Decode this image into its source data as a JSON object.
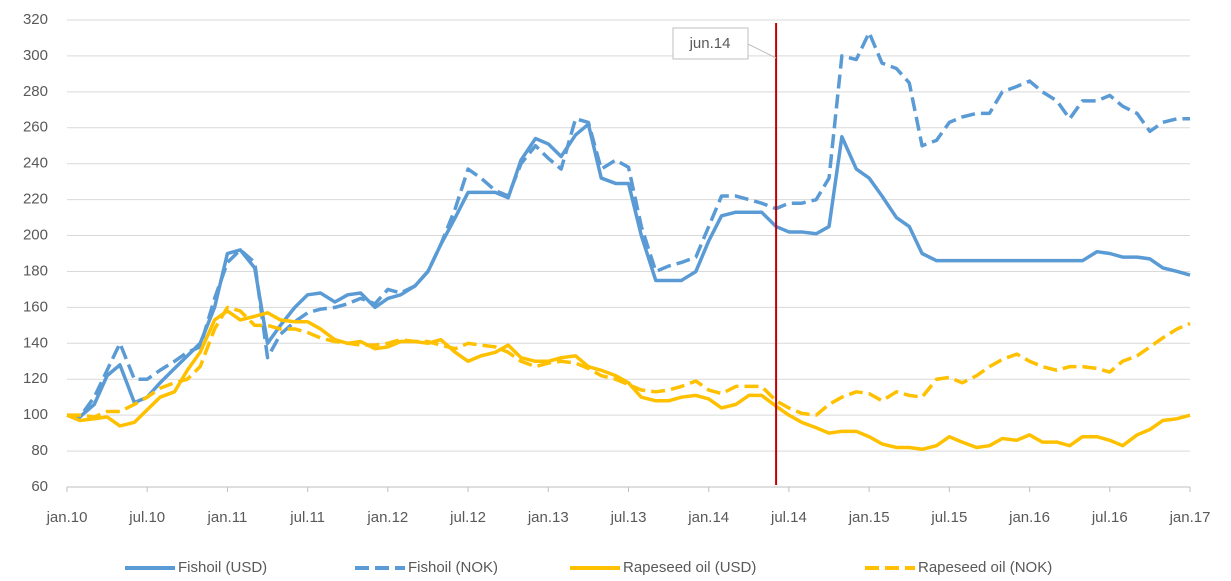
{
  "chart_data": {
    "type": "line",
    "x": [
      2010,
      2010.08,
      2010.17,
      2010.25,
      2010.33,
      2010.42,
      2010.5,
      2010.58,
      2010.67,
      2010.75,
      2010.83,
      2010.92,
      2011,
      2011.08,
      2011.17,
      2011.25,
      2011.33,
      2011.42,
      2011.5,
      2011.58,
      2011.67,
      2011.75,
      2011.83,
      2011.92,
      2012,
      2012.08,
      2012.17,
      2012.25,
      2012.33,
      2012.42,
      2012.5,
      2012.58,
      2012.67,
      2012.75,
      2012.83,
      2012.92,
      2013,
      2013.08,
      2013.17,
      2013.25,
      2013.33,
      2013.42,
      2013.5,
      2013.58,
      2013.67,
      2013.75,
      2013.83,
      2013.92,
      2014,
      2014.08,
      2014.17,
      2014.25,
      2014.33,
      2014.42,
      2014.5,
      2014.58,
      2014.67,
      2014.75,
      2014.83,
      2014.92,
      2015,
      2015.08,
      2015.17,
      2015.25,
      2015.33,
      2015.42,
      2015.5,
      2015.58,
      2015.67,
      2015.75,
      2015.83,
      2015.92,
      2016,
      2016.08,
      2016.17,
      2016.25,
      2016.33,
      2016.42,
      2016.5,
      2016.58,
      2016.67,
      2016.75,
      2016.83,
      2016.92,
      2017
    ],
    "series": [
      {
        "name": "Fishoil (USD)",
        "color": "#5b9bd5",
        "dashed": false,
        "values": [
          100,
          99,
          106,
          122,
          128,
          107,
          110,
          118,
          126,
          133,
          140,
          160,
          190,
          192,
          182,
          140,
          150,
          160,
          167,
          168,
          163,
          167,
          168,
          160,
          165,
          167,
          172,
          180,
          195,
          210,
          224,
          224,
          224,
          221,
          242,
          254,
          251,
          244,
          256,
          262,
          232,
          229,
          229,
          200,
          175,
          175,
          175,
          180,
          197,
          211,
          213,
          213,
          213,
          205,
          202,
          202,
          201,
          205,
          255,
          237,
          232,
          222,
          210,
          205,
          190,
          186,
          186,
          186,
          186,
          186,
          186,
          186,
          186,
          186,
          186,
          186,
          186,
          191,
          190,
          188,
          188,
          187,
          182,
          180,
          178
        ]
      },
      {
        "name": "Fishoil (NOK)",
        "color": "#5b9bd5",
        "dashed": true,
        "values": [
          100,
          99,
          110,
          125,
          140,
          120,
          120,
          125,
          130,
          135,
          138,
          165,
          185,
          192,
          185,
          132,
          145,
          152,
          157,
          159,
          160,
          162,
          165,
          162,
          170,
          168,
          172,
          180,
          195,
          215,
          237,
          232,
          225,
          222,
          240,
          250,
          243,
          237,
          265,
          263,
          237,
          242,
          238,
          205,
          180,
          183,
          185,
          188,
          205,
          222,
          222,
          220,
          218,
          215,
          218,
          218,
          220,
          232,
          300,
          298,
          313,
          296,
          293,
          285,
          250,
          253,
          263,
          266,
          268,
          268,
          280,
          283,
          286,
          280,
          275,
          265,
          275,
          275,
          278,
          272,
          268,
          258,
          263,
          265,
          265
        ]
      },
      {
        "name": "Rapeseed oil (USD)",
        "color": "#ffc000",
        "dashed": false,
        "values": [
          100,
          97,
          98,
          99,
          94,
          96,
          103,
          110,
          113,
          125,
          135,
          153,
          158,
          153,
          155,
          157,
          153,
          152,
          152,
          148,
          142,
          140,
          141,
          137,
          138,
          141,
          141,
          140,
          142,
          135,
          130,
          133,
          135,
          139,
          132,
          130,
          130,
          132,
          133,
          127,
          125,
          122,
          118,
          110,
          108,
          108,
          110,
          111,
          109,
          104,
          106,
          111,
          111,
          105,
          100,
          96,
          93,
          90,
          91,
          91,
          88,
          84,
          82,
          82,
          81,
          83,
          88,
          85,
          82,
          83,
          87,
          86,
          89,
          85,
          85,
          83,
          88,
          88,
          86,
          83,
          89,
          92,
          97,
          98,
          100
        ]
      },
      {
        "name": "Rapeseed oil (NOK)",
        "color": "#ffc000",
        "dashed": true,
        "values": [
          100,
          100,
          99,
          102,
          102,
          106,
          110,
          115,
          118,
          120,
          127,
          148,
          160,
          158,
          150,
          150,
          148,
          148,
          146,
          143,
          141,
          140,
          139,
          139,
          140,
          142,
          141,
          141,
          139,
          137,
          140,
          139,
          138,
          135,
          130,
          127,
          129,
          130,
          129,
          126,
          122,
          120,
          117,
          114,
          113,
          114,
          116,
          119,
          114,
          112,
          116,
          116,
          116,
          108,
          104,
          101,
          100,
          106,
          110,
          113,
          112,
          108,
          113,
          111,
          110,
          120,
          121,
          118,
          122,
          127,
          131,
          134,
          130,
          127,
          125,
          127,
          127,
          126,
          124,
          130,
          133,
          138,
          143,
          148,
          151
        ]
      }
    ],
    "xlim": [
      2010,
      2017
    ],
    "xticks": [
      {
        "value": 2010,
        "label": "jan.10"
      },
      {
        "value": 2010.5,
        "label": "jul.10"
      },
      {
        "value": 2011,
        "label": "jan.11"
      },
      {
        "value": 2011.5,
        "label": "jul.11"
      },
      {
        "value": 2012,
        "label": "jan.12"
      },
      {
        "value": 2012.5,
        "label": "jul.12"
      },
      {
        "value": 2013,
        "label": "jan.13"
      },
      {
        "value": 2013.5,
        "label": "jul.13"
      },
      {
        "value": 2014,
        "label": "jan.14"
      },
      {
        "value": 2014.5,
        "label": "jul.14"
      },
      {
        "value": 2015,
        "label": "jan.15"
      },
      {
        "value": 2015.5,
        "label": "jul.15"
      },
      {
        "value": 2016,
        "label": "jan.16"
      },
      {
        "value": 2016.5,
        "label": "jul.16"
      },
      {
        "value": 2017,
        "label": "jan.17"
      }
    ],
    "ylim": [
      60,
      320
    ],
    "yticks": [
      60,
      80,
      100,
      120,
      140,
      160,
      180,
      200,
      220,
      240,
      260,
      280,
      300,
      320
    ],
    "grid": true,
    "legend": "bottom",
    "annotation": {
      "text": "jun.14",
      "x": 2014.42,
      "color": "#c00000"
    }
  }
}
